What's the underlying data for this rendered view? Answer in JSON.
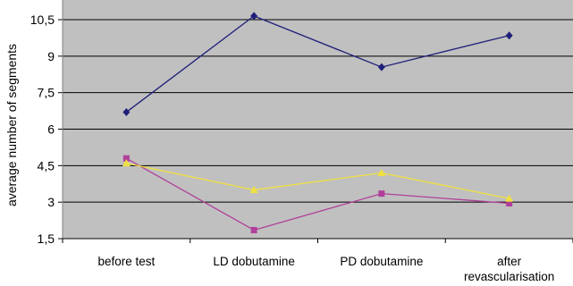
{
  "chart_data": {
    "type": "line",
    "ylabel": "average number of segments",
    "ylim": [
      1.5,
      11.25
    ],
    "yticks": [
      1.5,
      3,
      4.5,
      6,
      7.5,
      9,
      10.5
    ],
    "ytick_labels": [
      "1,5",
      "3",
      "4,5",
      "6",
      "7,5",
      "9",
      "10,5"
    ],
    "categories": [
      [
        "before test"
      ],
      [
        "LD dobutamine"
      ],
      [
        "PD dobutamine"
      ],
      [
        "after",
        "revascularisation"
      ]
    ],
    "grid": true,
    "legend": "none",
    "series": [
      {
        "color": "#1f1f7a",
        "marker": "diamond",
        "values": [
          6.7,
          10.65,
          8.55,
          9.85
        ]
      },
      {
        "color": "#b0409a",
        "marker": "square",
        "values": [
          4.8,
          1.85,
          3.35,
          2.95
        ]
      },
      {
        "color": "#f0e040",
        "marker": "triangle",
        "values": [
          4.6,
          3.5,
          4.2,
          3.15
        ]
      }
    ],
    "plot_background": "#c0c0c0"
  }
}
